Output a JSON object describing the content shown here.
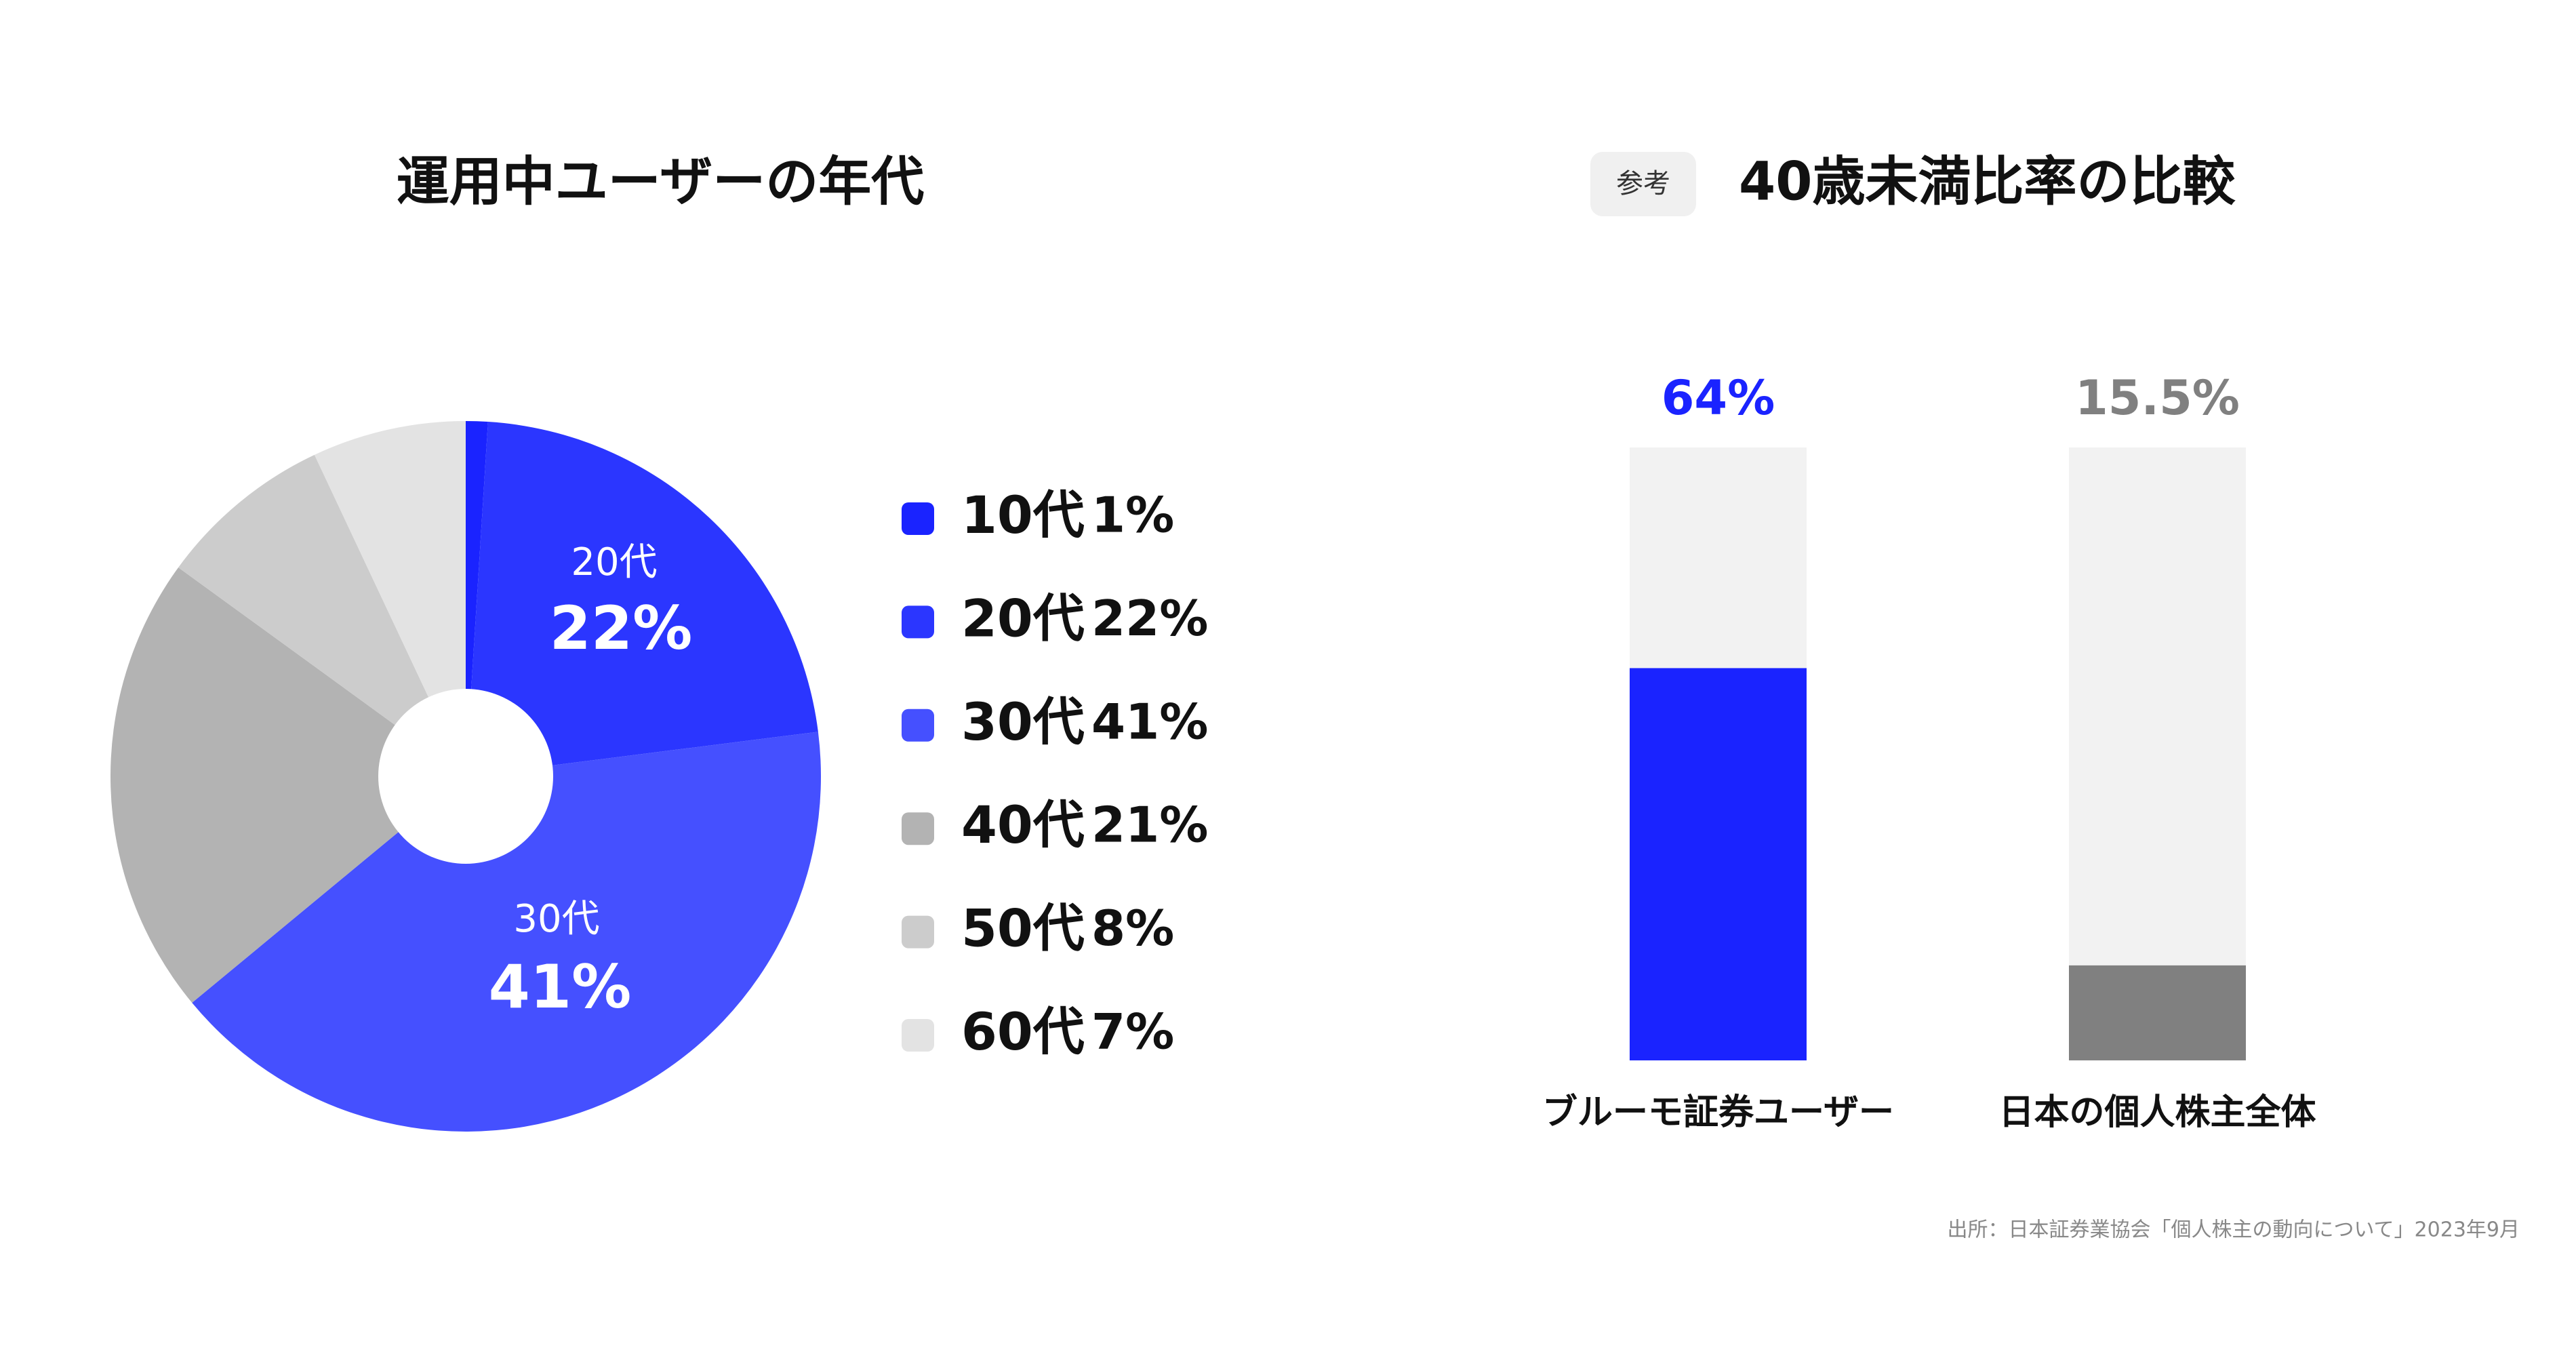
{
  "chart_data": [
    {
      "type": "pie",
      "title": "運用中ユーザーの年代",
      "categories": [
        "10代",
        "20代",
        "30代",
        "40代",
        "50代",
        "60代"
      ],
      "values": [
        1,
        22,
        41,
        21,
        8,
        7
      ],
      "value_labels": [
        "1%",
        "22%",
        "41%",
        "21%",
        "8%",
        "7%"
      ],
      "colors": [
        "#1a23ff",
        "#2b36ff",
        "#4550ff",
        "#b3b3b3",
        "#cccccc",
        "#e3e3e3"
      ]
    },
    {
      "type": "bar",
      "title": "40歳未満比率の比較",
      "annotation": "参考",
      "categories": [
        "ブルーモ証券ユーザー",
        "日本の個人株主全体"
      ],
      "values": [
        64,
        15.5
      ],
      "value_labels": [
        "64%",
        "15.5%"
      ],
      "colors": [
        "#1a23ff",
        "#808080"
      ],
      "ylim": [
        0,
        100
      ],
      "source": "出所：日本証券業協会「個人株主の動向について」2023年9月"
    }
  ]
}
